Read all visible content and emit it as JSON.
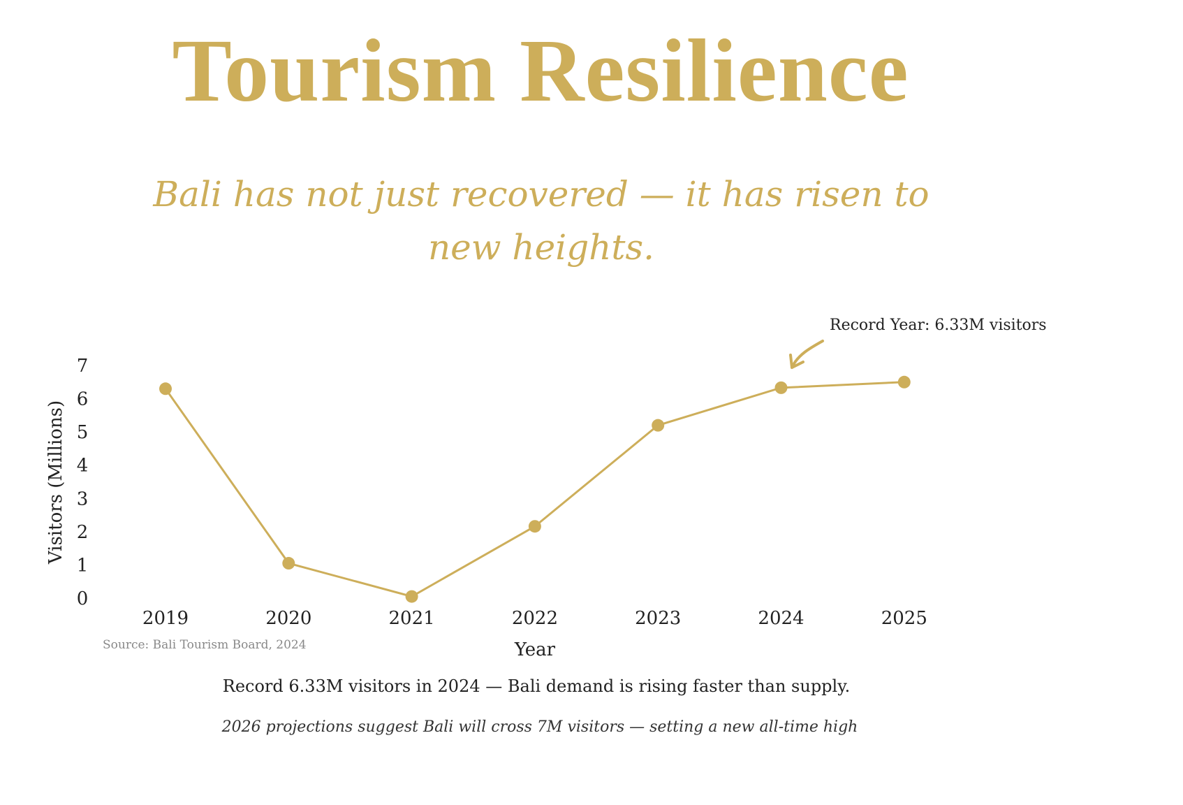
{
  "title": "Tourism Resilience",
  "subtitle": "Bali has not just recovered — it has risen to new heights.",
  "caption": "Record 6.33M visitors in 2024 — Bali demand is rising faster than supply.",
  "note": "2026 projections suggest Bali will cross 7M visitors — setting a new all-time high",
  "source": "Source: Bali Tourism Board, 2024",
  "colors": {
    "accent": "#CDAE5A",
    "text": "#222222"
  },
  "chart_data": {
    "type": "line",
    "title": "",
    "xlabel": "Year",
    "ylabel": "Visitors (Millions)",
    "categories": [
      "2019",
      "2020",
      "2021",
      "2022",
      "2023",
      "2024",
      "2025"
    ],
    "values": [
      6.3,
      1.05,
      0.05,
      2.16,
      5.2,
      6.33,
      6.5
    ],
    "ylim": [
      0,
      7
    ],
    "yticks": [
      "0",
      "1",
      "2",
      "3",
      "4",
      "5",
      "6",
      "7"
    ],
    "grid": false,
    "annotation": {
      "text": "Record Year: 6.33M visitors",
      "target": "2024"
    }
  }
}
